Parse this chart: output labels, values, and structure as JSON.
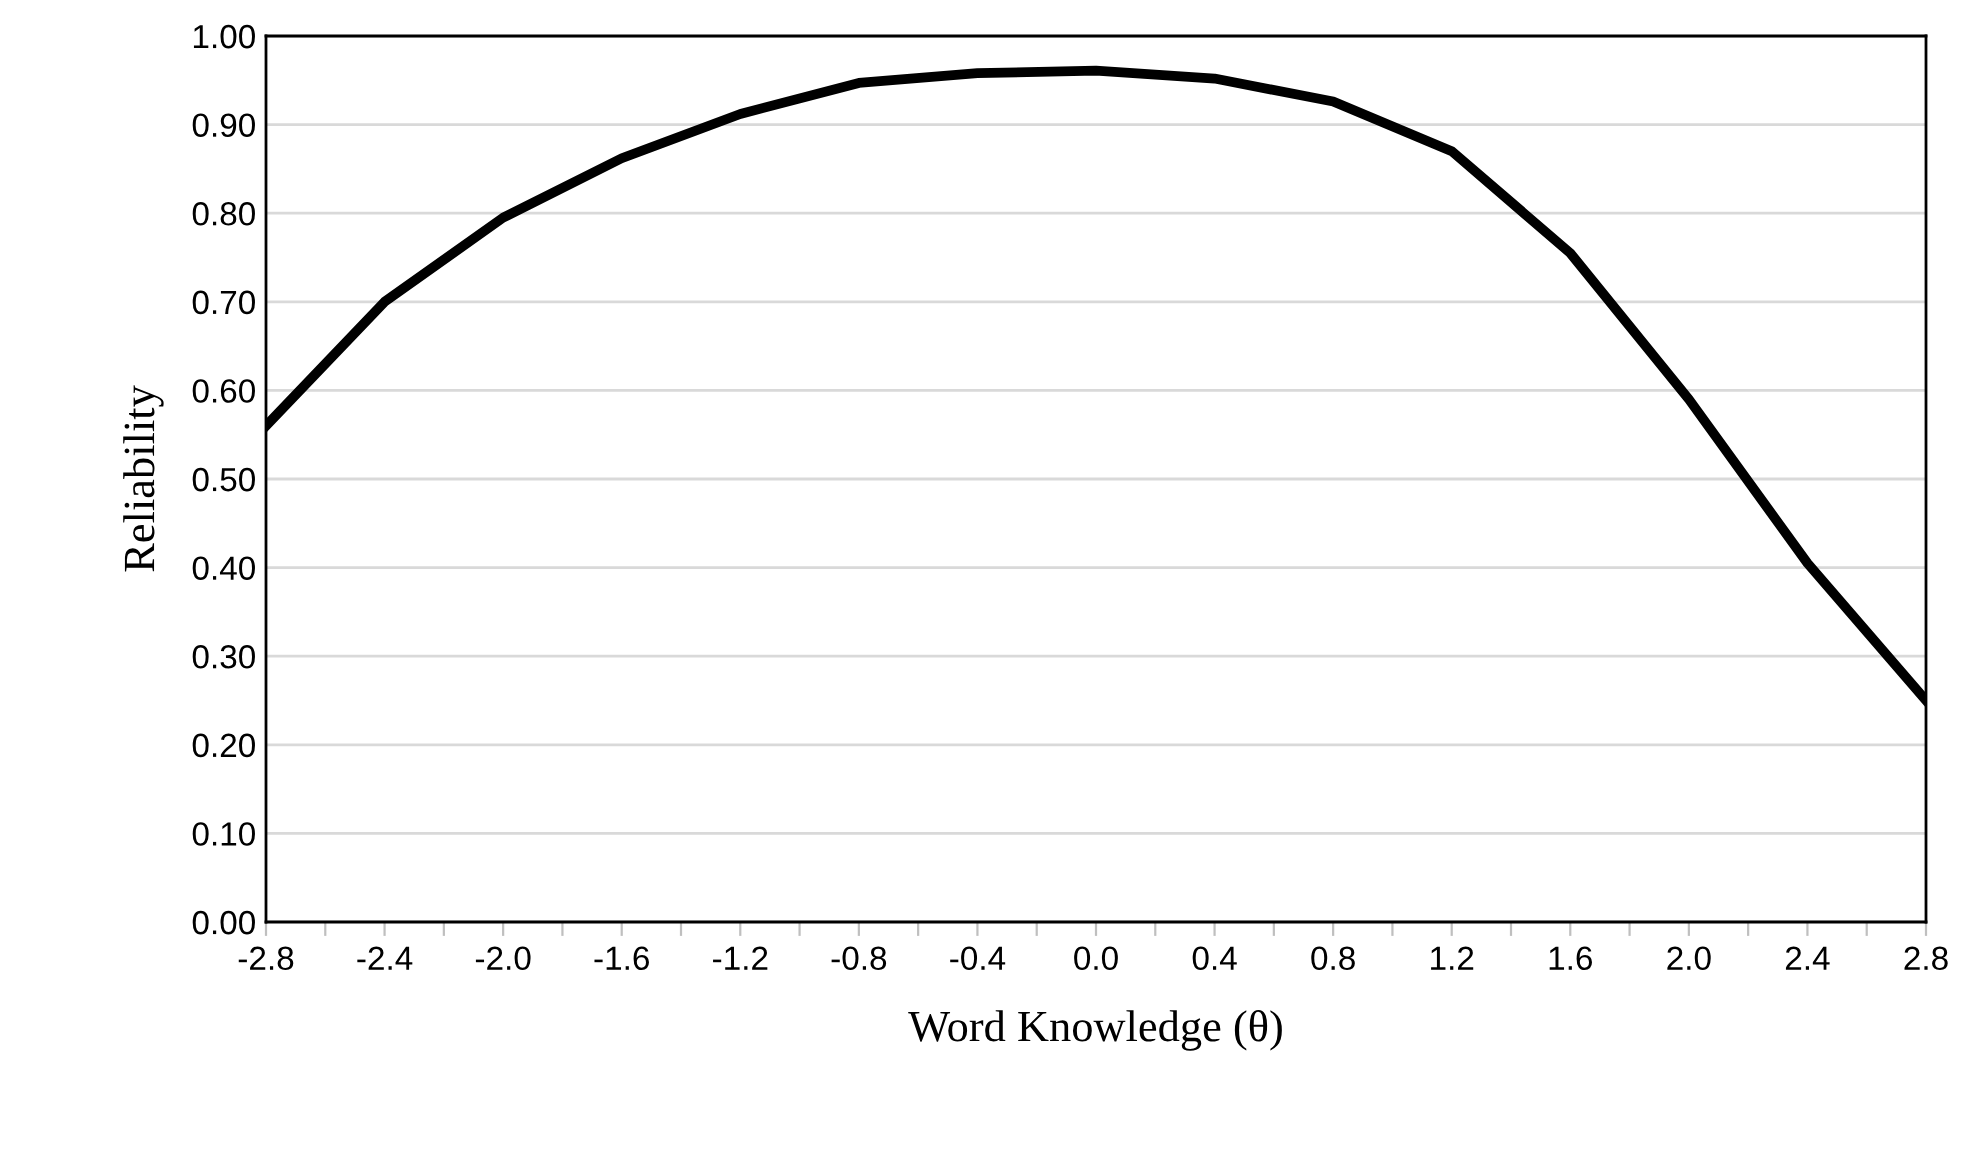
{
  "chart_data": {
    "type": "line",
    "xlabel": "Word Knowledge (θ)",
    "ylabel": "Reliability",
    "x": [
      -2.8,
      -2.4,
      -2.0,
      -1.6,
      -1.2,
      -0.8,
      -0.4,
      0.0,
      0.4,
      0.8,
      1.2,
      1.6,
      2.0,
      2.4,
      2.8
    ],
    "series": [
      {
        "color": "#000000",
        "values": [
          0.56,
          0.7,
          0.795,
          0.862,
          0.912,
          0.947,
          0.958,
          0.961,
          0.952,
          0.926,
          0.87,
          0.755,
          0.59,
          0.405,
          0.25
        ]
      }
    ],
    "xlim": [
      -2.8,
      2.8
    ],
    "ylim": [
      0,
      1
    ],
    "xticks": [
      {
        "value": -2.8,
        "label": "-2.8"
      },
      {
        "value": -2.6,
        "label": null
      },
      {
        "value": -2.4,
        "label": "-2.4"
      },
      {
        "value": -2.2,
        "label": null
      },
      {
        "value": -2.0,
        "label": "-2.0"
      },
      {
        "value": -1.8,
        "label": null
      },
      {
        "value": -1.6,
        "label": "-1.6"
      },
      {
        "value": -1.4,
        "label": null
      },
      {
        "value": -1.2,
        "label": "-1.2"
      },
      {
        "value": -1.0,
        "label": null
      },
      {
        "value": -0.8,
        "label": "-0.8"
      },
      {
        "value": -0.6,
        "label": null
      },
      {
        "value": -0.4,
        "label": "-0.4"
      },
      {
        "value": -0.2,
        "label": null
      },
      {
        "value": 0.0,
        "label": "0.0"
      },
      {
        "value": 0.2,
        "label": null
      },
      {
        "value": 0.4,
        "label": "0.4"
      },
      {
        "value": 0.6,
        "label": null
      },
      {
        "value": 0.8,
        "label": "0.8"
      },
      {
        "value": 1.0,
        "label": null
      },
      {
        "value": 1.2,
        "label": "1.2"
      },
      {
        "value": 1.4,
        "label": null
      },
      {
        "value": 1.6,
        "label": "1.6"
      },
      {
        "value": 1.8,
        "label": null
      },
      {
        "value": 2.0,
        "label": "2.0"
      },
      {
        "value": 2.2,
        "label": null
      },
      {
        "value": 2.4,
        "label": "2.4"
      },
      {
        "value": 2.6,
        "label": null
      },
      {
        "value": 2.8,
        "label": "2.8"
      }
    ],
    "yticks": [
      {
        "value": 0,
        "label": "0.00"
      },
      {
        "value": 0.1,
        "label": "0.10"
      },
      {
        "value": 0.2,
        "label": "0.20"
      },
      {
        "value": 0.3,
        "label": "0.30"
      },
      {
        "value": 0.4,
        "label": "0.40"
      },
      {
        "value": 0.5,
        "label": "0.50"
      },
      {
        "value": 0.6,
        "label": "0.60"
      },
      {
        "value": 0.7,
        "label": "0.70"
      },
      {
        "value": 0.8,
        "label": "0.80"
      },
      {
        "value": 0.9,
        "label": "0.90"
      },
      {
        "value": 1.0,
        "label": "1.00"
      }
    ],
    "grid": "y",
    "legend": false,
    "marker": "none",
    "line_style": "solid"
  }
}
